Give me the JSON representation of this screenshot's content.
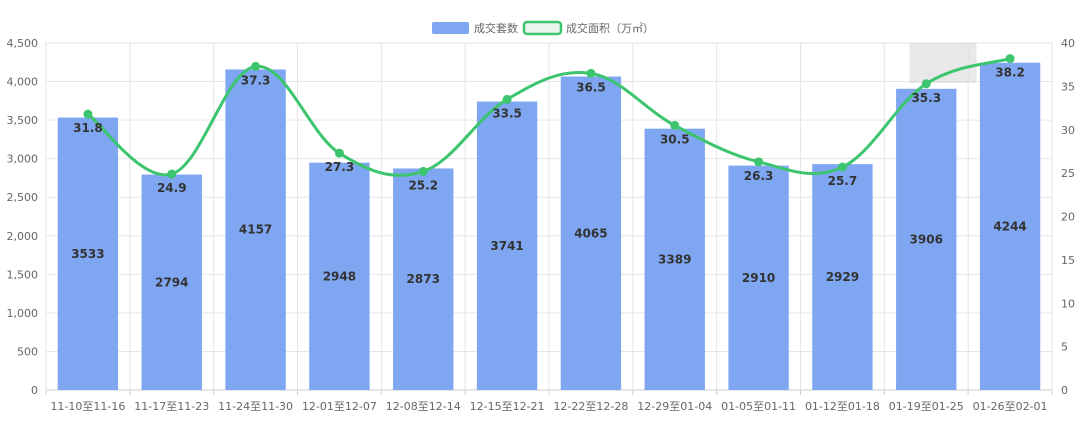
{
  "colors": {
    "bar": "#7fa6f0",
    "line": "#3cc56e",
    "grid": "#e6e6e6",
    "axis": "#cccccc",
    "highlight": "#d9d9d9"
  },
  "chart_data": {
    "type": "bar",
    "categories": [
      "11-10至11-16",
      "11-17至11-23",
      "11-24至11-30",
      "12-01至12-07",
      "12-08至12-14",
      "12-15至12-21",
      "12-22至12-28",
      "12-29至01-04",
      "01-05至01-11",
      "01-12至01-18",
      "01-19至01-25",
      "01-26至02-01"
    ],
    "series": [
      {
        "name": "成交套数",
        "type": "bar",
        "axis": "left",
        "values": [
          3533,
          2794,
          4157,
          2948,
          2873,
          3741,
          4065,
          3389,
          2910,
          2929,
          3906,
          4244
        ]
      },
      {
        "name": "成交面积（万㎡）",
        "type": "line",
        "axis": "right",
        "smooth": true,
        "values": [
          31.8,
          24.9,
          37.3,
          27.3,
          25.2,
          33.5,
          36.5,
          30.5,
          26.3,
          25.7,
          35.3,
          38.2
        ]
      }
    ],
    "y_left": {
      "min": 0,
      "max": 4500,
      "step": 500,
      "tick_labels": [
        "0",
        "500",
        "1,000",
        "1,500",
        "2,000",
        "2,500",
        "3,000",
        "3,500",
        "4,000",
        "4,500"
      ]
    },
    "y_right": {
      "min": 0,
      "max": 40,
      "step": 5,
      "tick_labels": [
        "0",
        "5",
        "10",
        "15",
        "20",
        "25",
        "30",
        "35",
        "40"
      ]
    },
    "legend": {
      "position": "top-center",
      "items": [
        "成交套数",
        "成交面积（万㎡）"
      ]
    },
    "grid": true
  }
}
